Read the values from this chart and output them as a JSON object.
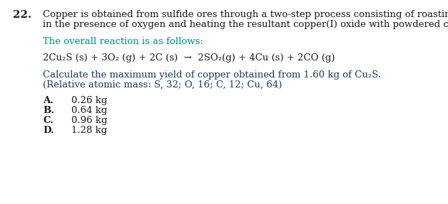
{
  "bg_color": "#ffffff",
  "text_color": "#1a1a1a",
  "teal_color": "#008B8B",
  "navy_color": "#1a3a5c",
  "question_number": "22.",
  "q_line1": "Copper is obtained from sulfide ores through a two-step process consisting of roasting the ore",
  "q_line2": "in the presence of oxygen and heating the resultant copper(I) oxide with powdered carbon.",
  "overall_label": "The overall reaction is as follows:",
  "equation": "2Cu₂S (s) + 3O₂ (g) + 2C (s)  →  2SO₂(g) + 4Cu (s) + 2CO (g)",
  "calc_line1": "Calculate the maximum yield of copper obtained from 1.60 kg of Cu₂S.",
  "calc_line2": "(Relative atomic mass: S, 32; O, 16; C, 12; Cu, 64)",
  "options": [
    {
      "letter": "A.",
      "text": "0.26 kg"
    },
    {
      "letter": "B.",
      "text": "0.64 kg"
    },
    {
      "letter": "C.",
      "text": "0.96 kg"
    },
    {
      "letter": "D.",
      "text": "1.28 kg"
    }
  ],
  "font_size_main": 9.5,
  "font_size_number": 11.0,
  "font_family": "DejaVu Serif",
  "fig_width": 6.28,
  "fig_height": 2.87,
  "dpi": 100
}
